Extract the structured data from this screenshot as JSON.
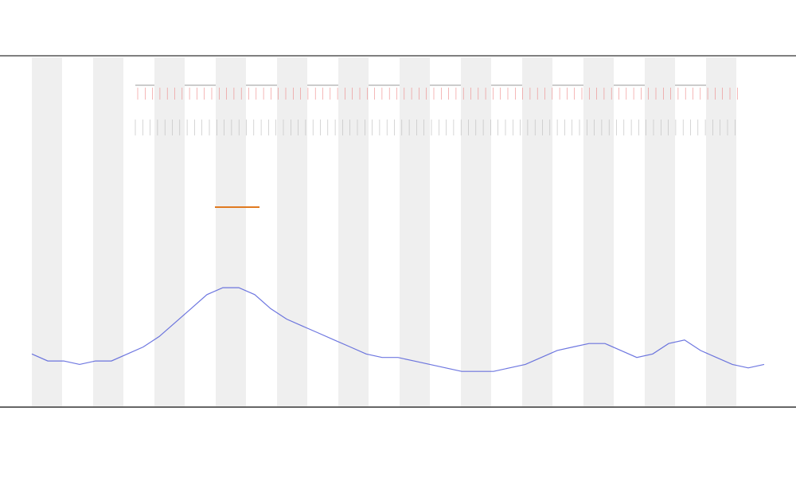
{
  "chart_data": {
    "type": "line",
    "color": "#4a55d8",
    "values": [
      15,
      13,
      13,
      12,
      13,
      13,
      15,
      17,
      20,
      24,
      28,
      32,
      34,
      34,
      32,
      28,
      25,
      23,
      21,
      19,
      17,
      15,
      14,
      14,
      13,
      12,
      11,
      10,
      10,
      10,
      11,
      12,
      14,
      16,
      17,
      18,
      18,
      16,
      14,
      15,
      18,
      19,
      16,
      14,
      12,
      11,
      12
    ],
    "ylim": [
      0,
      100
    ]
  }
}
